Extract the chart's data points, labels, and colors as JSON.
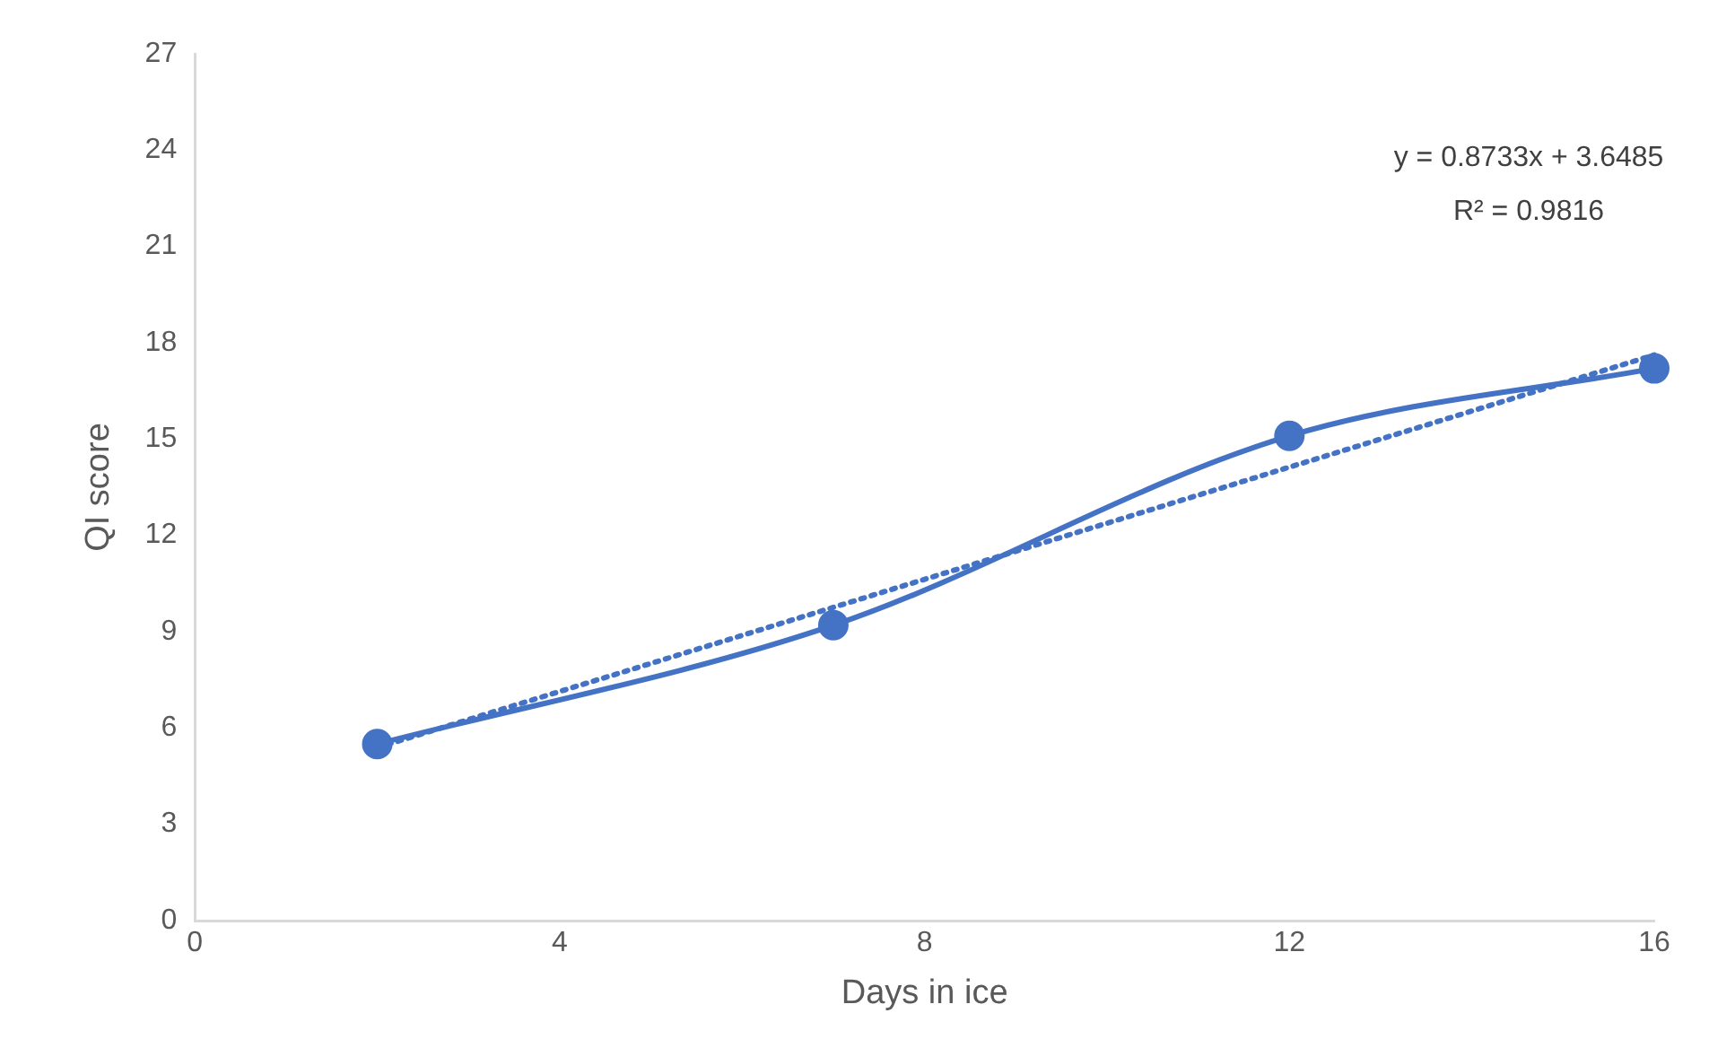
{
  "chart_data": {
    "type": "line",
    "xlabel": "Days in ice",
    "ylabel": "QI score",
    "x": [
      2,
      7,
      12,
      16
    ],
    "series": [
      {
        "type": "line",
        "color": "#4472c4",
        "values": [
          5.5,
          9.2,
          15.1,
          17.2
        ],
        "marker": "circle",
        "line_style": "solid"
      },
      {
        "type": "line",
        "color": "#4472c4",
        "x": [
          2,
          16
        ],
        "values": [
          5.39,
          17.62
        ],
        "marker": "none",
        "line_style": "dotted"
      }
    ],
    "xlim": [
      0,
      16
    ],
    "xticks": [
      0,
      4,
      8,
      12,
      16
    ],
    "ylim": [
      0,
      27
    ],
    "yticks": [
      0,
      3,
      6,
      9,
      12,
      15,
      18,
      21,
      24,
      27
    ],
    "annotations": [
      "y = 0.8733x + 3.6485",
      "R² = 0.9816"
    ]
  }
}
